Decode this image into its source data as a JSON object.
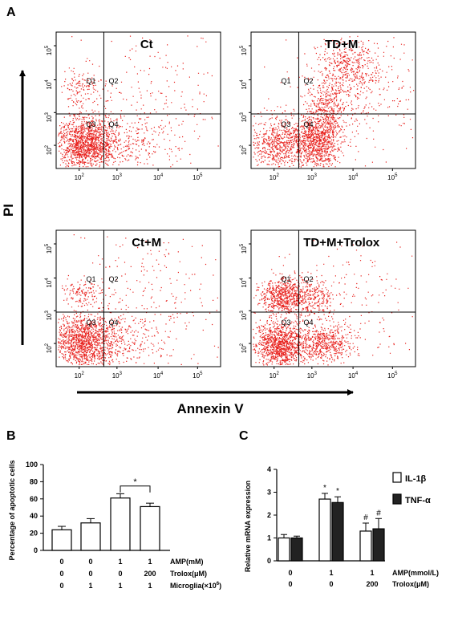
{
  "panels": {
    "a": "A",
    "b": "B",
    "c": "C"
  },
  "panel_a": {
    "y_axis": "PI",
    "x_axis": "Annexin V",
    "dot_color": "#e8201c",
    "quadrant_labels": [
      "Q1",
      "Q2",
      "Q3",
      "Q4"
    ],
    "x_ticks": [
      "10",
      "10",
      "10",
      "10"
    ],
    "x_tick_exps": [
      "2",
      "3",
      "4",
      "5"
    ],
    "y_ticks": [
      "10",
      "10",
      "10",
      "10"
    ],
    "y_tick_exps": [
      "2",
      "3",
      "4",
      "5"
    ],
    "plots": [
      {
        "title": "Ct"
      },
      {
        "title": "TD+M"
      },
      {
        "title": "Ct+M"
      },
      {
        "title": "TD+M+Trolox"
      }
    ]
  },
  "chart_data": [
    {
      "type": "bar",
      "panel": "B",
      "ylabel": "Percentage of apoptotic cells",
      "ylim": [
        0,
        100
      ],
      "yticks": [
        0,
        20,
        40,
        60,
        80,
        100
      ],
      "values": [
        24,
        32,
        61,
        51
      ],
      "errors": [
        4,
        5,
        5,
        4
      ],
      "fills": [
        "#ffffff",
        "#ffffff",
        "#ffffff",
        "#ffffff"
      ],
      "significance": {
        "label": "*",
        "between": [
          2,
          3
        ]
      },
      "conditions": [
        {
          "label": "AMP(mM)",
          "values": [
            "0",
            "0",
            "1",
            "1"
          ]
        },
        {
          "label": "Trolox(μM)",
          "values": [
            "0",
            "0",
            "0",
            "200"
          ]
        },
        {
          "label": "Microglia(×10",
          "sup": "6",
          "close": ")",
          "values": [
            "0",
            "1",
            "1",
            "1"
          ]
        }
      ]
    },
    {
      "type": "bar",
      "panel": "C",
      "ylabel": "Relative mRNA expression",
      "ylim": [
        0,
        4
      ],
      "yticks": [
        0,
        1,
        2,
        3,
        4
      ],
      "groups": 3,
      "series": [
        {
          "name": "IL-1β",
          "color": "#ffffff",
          "values": [
            1.0,
            2.7,
            1.3
          ],
          "errors": [
            0.15,
            0.25,
            0.35
          ],
          "marks": [
            "",
            "*",
            "#"
          ]
        },
        {
          "name": "TNF-α",
          "color": "#222222",
          "values": [
            1.0,
            2.55,
            1.4
          ],
          "errors": [
            0.08,
            0.25,
            0.45
          ],
          "marks": [
            "",
            "*",
            "#"
          ]
        }
      ],
      "conditions": [
        {
          "label": "AMP(mmol/L)",
          "values": [
            "0",
            "1",
            "1"
          ]
        },
        {
          "label": "Trolox(μM)",
          "values": [
            "0",
            "0",
            "200"
          ]
        }
      ]
    }
  ]
}
